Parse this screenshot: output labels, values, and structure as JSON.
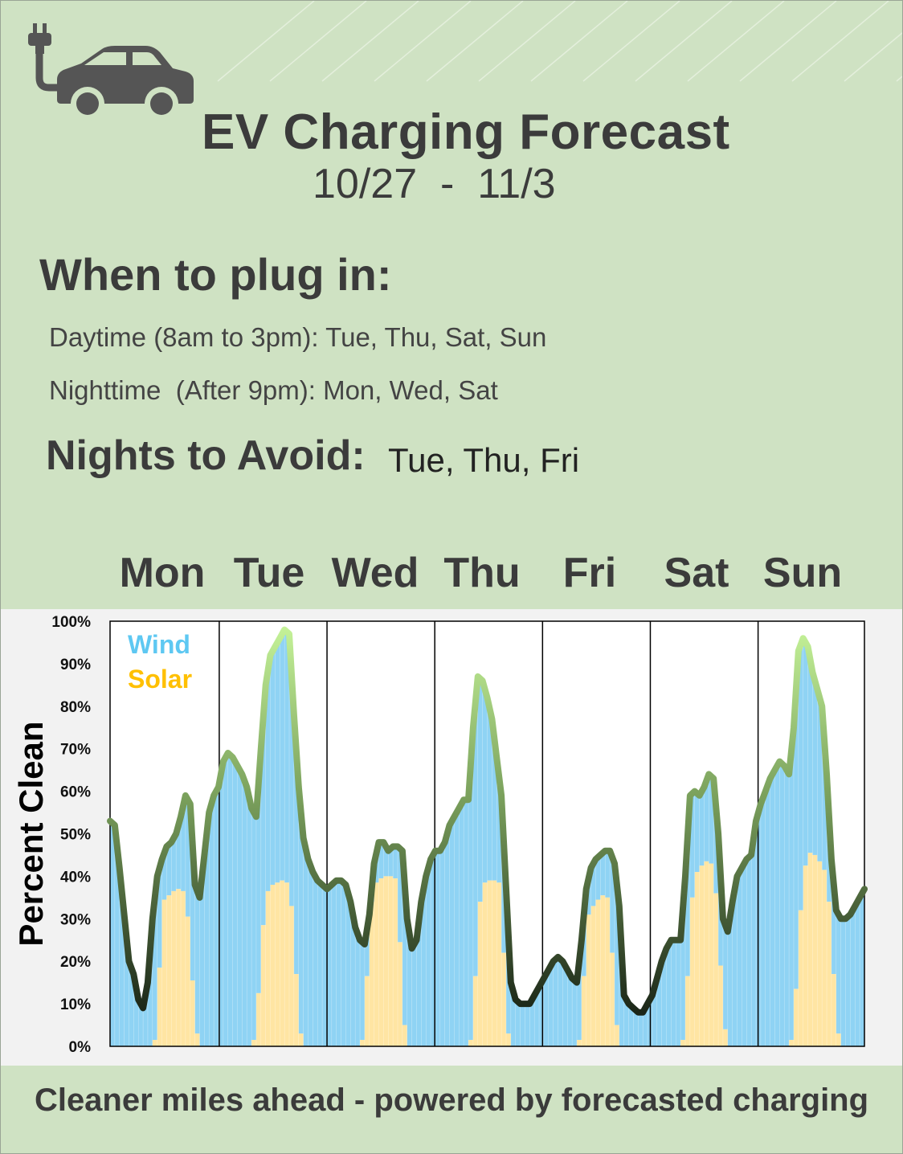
{
  "header": {
    "title": "EV Charging Forecast",
    "date_range": "10/27  -  11/3",
    "icon": "ev-car-plug-icon"
  },
  "plug_in": {
    "heading": "When to plug in:",
    "daytime": "Daytime (8am to 3pm): Tue, Thu, Sat, Sun",
    "nighttime": "Nighttime  (After 9pm): Mon, Wed, Sat"
  },
  "avoid": {
    "heading": "Nights to Avoid:",
    "days": "Tue, Thu, Fri"
  },
  "days": [
    "Mon",
    "Tue",
    "Wed",
    "Thu",
    "Fri",
    "Sat",
    "Sun"
  ],
  "footer": "Cleaner miles ahead - powered by forecasted charging",
  "colors": {
    "background": "#cfe2c3",
    "wind": "#8fd3f4",
    "solar": "#ffe5a3",
    "wind_label": "#5ec8f2",
    "solar_label": "#ffc000",
    "total_line_high": "#c7f59a",
    "total_line_low": "#1b2618"
  },
  "chart_data": {
    "type": "area",
    "ylabel": "Percent Clean",
    "ylim": [
      0,
      100
    ],
    "yticks": [
      "0%",
      "10%",
      "20%",
      "30%",
      "40%",
      "50%",
      "60%",
      "70%",
      "80%",
      "90%",
      "100%"
    ],
    "legend": [
      "Wind",
      "Solar"
    ],
    "legend_position": "top-left",
    "categories": [
      "Mon",
      "Tue",
      "Wed",
      "Thu",
      "Fri",
      "Sat",
      "Sun"
    ],
    "series": [
      {
        "name": "Total",
        "points": [
          [
            0,
            53
          ],
          [
            1,
            52
          ],
          [
            2,
            42
          ],
          [
            3,
            31
          ],
          [
            4,
            20
          ],
          [
            5,
            17
          ],
          [
            6,
            11
          ],
          [
            7,
            9
          ],
          [
            8,
            15
          ],
          [
            9,
            30
          ],
          [
            10,
            40
          ],
          [
            11,
            44
          ],
          [
            12,
            47
          ],
          [
            13,
            48
          ],
          [
            14,
            50
          ],
          [
            15,
            54
          ],
          [
            16,
            59
          ],
          [
            17,
            57
          ],
          [
            18,
            38
          ],
          [
            19,
            35
          ],
          [
            20,
            45
          ],
          [
            21,
            55
          ],
          [
            22,
            59
          ],
          [
            23,
            61
          ],
          [
            24,
            67
          ],
          [
            25,
            69
          ],
          [
            26,
            68
          ],
          [
            27,
            66
          ],
          [
            28,
            64
          ],
          [
            29,
            61
          ],
          [
            30,
            56
          ],
          [
            31,
            54
          ],
          [
            32,
            70
          ],
          [
            33,
            85
          ],
          [
            34,
            92
          ],
          [
            35,
            94
          ],
          [
            36,
            96
          ],
          [
            37,
            98
          ],
          [
            38,
            97
          ],
          [
            39,
            78
          ],
          [
            40,
            61
          ],
          [
            41,
            49
          ],
          [
            42,
            44
          ],
          [
            43,
            41
          ],
          [
            44,
            39
          ],
          [
            45,
            38
          ],
          [
            46,
            37
          ],
          [
            47,
            38
          ],
          [
            48,
            39
          ],
          [
            49,
            39
          ],
          [
            50,
            38
          ],
          [
            51,
            34
          ],
          [
            52,
            28
          ],
          [
            53,
            25
          ],
          [
            54,
            24
          ],
          [
            55,
            31
          ],
          [
            56,
            43
          ],
          [
            57,
            48
          ],
          [
            58,
            48
          ],
          [
            59,
            46
          ],
          [
            60,
            47
          ],
          [
            61,
            47
          ],
          [
            62,
            46
          ],
          [
            63,
            30
          ],
          [
            64,
            23
          ],
          [
            65,
            25
          ],
          [
            66,
            34
          ],
          [
            67,
            40
          ],
          [
            68,
            44
          ],
          [
            69,
            46
          ],
          [
            70,
            46
          ],
          [
            71,
            48
          ],
          [
            72,
            52
          ],
          [
            73,
            54
          ],
          [
            74,
            56
          ],
          [
            75,
            58
          ],
          [
            76,
            58
          ],
          [
            77,
            75
          ],
          [
            78,
            87
          ],
          [
            79,
            86
          ],
          [
            80,
            82
          ],
          [
            81,
            77
          ],
          [
            82,
            68
          ],
          [
            83,
            59
          ],
          [
            84,
            37
          ],
          [
            85,
            15
          ],
          [
            86,
            11
          ],
          [
            87,
            10
          ],
          [
            88,
            10
          ],
          [
            89,
            10
          ],
          [
            90,
            12
          ],
          [
            91,
            14
          ],
          [
            92,
            16
          ],
          [
            93,
            18
          ],
          [
            94,
            20
          ],
          [
            95,
            21
          ],
          [
            96,
            20
          ],
          [
            97,
            18
          ],
          [
            98,
            16
          ],
          [
            99,
            15
          ],
          [
            100,
            25
          ],
          [
            101,
            37
          ],
          [
            102,
            42
          ],
          [
            103,
            44
          ],
          [
            104,
            45
          ],
          [
            105,
            46
          ],
          [
            106,
            46
          ],
          [
            107,
            43
          ],
          [
            108,
            33
          ],
          [
            109,
            12
          ],
          [
            110,
            10
          ],
          [
            111,
            9
          ],
          [
            112,
            8
          ],
          [
            113,
            8
          ],
          [
            114,
            10
          ],
          [
            115,
            12
          ],
          [
            116,
            16
          ],
          [
            117,
            20
          ],
          [
            118,
            23
          ],
          [
            119,
            25
          ],
          [
            120,
            25
          ],
          [
            121,
            25
          ],
          [
            122,
            40
          ],
          [
            123,
            59
          ],
          [
            124,
            60
          ],
          [
            125,
            59
          ],
          [
            126,
            61
          ],
          [
            127,
            64
          ],
          [
            128,
            63
          ],
          [
            129,
            50
          ],
          [
            130,
            30
          ],
          [
            131,
            27
          ],
          [
            132,
            34
          ],
          [
            133,
            40
          ],
          [
            134,
            42
          ],
          [
            135,
            44
          ],
          [
            136,
            45
          ],
          [
            137,
            53
          ],
          [
            138,
            57
          ],
          [
            139,
            60
          ],
          [
            140,
            63
          ],
          [
            141,
            65
          ],
          [
            142,
            67
          ],
          [
            143,
            66
          ],
          [
            144,
            64
          ],
          [
            145,
            75
          ],
          [
            146,
            93
          ],
          [
            147,
            96
          ],
          [
            148,
            94
          ],
          [
            149,
            88
          ],
          [
            150,
            84
          ],
          [
            151,
            80
          ],
          [
            152,
            64
          ],
          [
            153,
            44
          ],
          [
            154,
            32
          ],
          [
            155,
            30
          ],
          [
            156,
            30
          ],
          [
            157,
            31
          ],
          [
            158,
            33
          ],
          [
            159,
            35
          ],
          [
            160,
            37
          ]
        ]
      },
      {
        "name": "Solar",
        "points": [
          [
            0,
            0
          ],
          [
            9,
            0
          ],
          [
            10,
            3
          ],
          [
            11,
            34
          ],
          [
            12,
            35
          ],
          [
            13,
            36
          ],
          [
            14,
            37
          ],
          [
            15,
            37
          ],
          [
            16,
            36
          ],
          [
            17,
            25
          ],
          [
            18,
            6
          ],
          [
            19,
            0
          ],
          [
            30,
            0
          ],
          [
            31,
            3
          ],
          [
            32,
            22
          ],
          [
            33,
            35
          ],
          [
            34,
            38
          ],
          [
            35,
            38
          ],
          [
            36,
            39
          ],
          [
            37,
            39
          ],
          [
            38,
            38
          ],
          [
            39,
            28
          ],
          [
            40,
            6
          ],
          [
            41,
            0
          ],
          [
            53,
            0
          ],
          [
            54,
            3
          ],
          [
            55,
            30
          ],
          [
            56,
            38
          ],
          [
            57,
            39
          ],
          [
            58,
            40
          ],
          [
            59,
            40
          ],
          [
            60,
            40
          ],
          [
            61,
            39
          ],
          [
            62,
            10
          ],
          [
            63,
            0
          ],
          [
            76,
            0
          ],
          [
            77,
            3
          ],
          [
            78,
            30
          ],
          [
            79,
            38
          ],
          [
            80,
            39
          ],
          [
            81,
            39
          ],
          [
            82,
            39
          ],
          [
            83,
            38
          ],
          [
            84,
            6
          ],
          [
            85,
            0
          ],
          [
            99,
            0
          ],
          [
            100,
            3
          ],
          [
            101,
            30
          ],
          [
            102,
            32
          ],
          [
            103,
            34
          ],
          [
            104,
            35
          ],
          [
            105,
            36
          ],
          [
            106,
            34
          ],
          [
            107,
            10
          ],
          [
            108,
            0
          ],
          [
            121,
            0
          ],
          [
            122,
            3
          ],
          [
            123,
            30
          ],
          [
            124,
            40
          ],
          [
            125,
            42
          ],
          [
            126,
            43
          ],
          [
            127,
            44
          ],
          [
            128,
            42
          ],
          [
            129,
            30
          ],
          [
            130,
            8
          ],
          [
            131,
            0
          ],
          [
            144,
            0
          ],
          [
            145,
            3
          ],
          [
            146,
            24
          ],
          [
            147,
            40
          ],
          [
            148,
            45
          ],
          [
            149,
            46
          ],
          [
            150,
            44
          ],
          [
            151,
            43
          ],
          [
            152,
            40
          ],
          [
            153,
            28
          ],
          [
            154,
            6
          ],
          [
            155,
            0
          ],
          [
            160,
            0
          ]
        ]
      }
    ]
  }
}
